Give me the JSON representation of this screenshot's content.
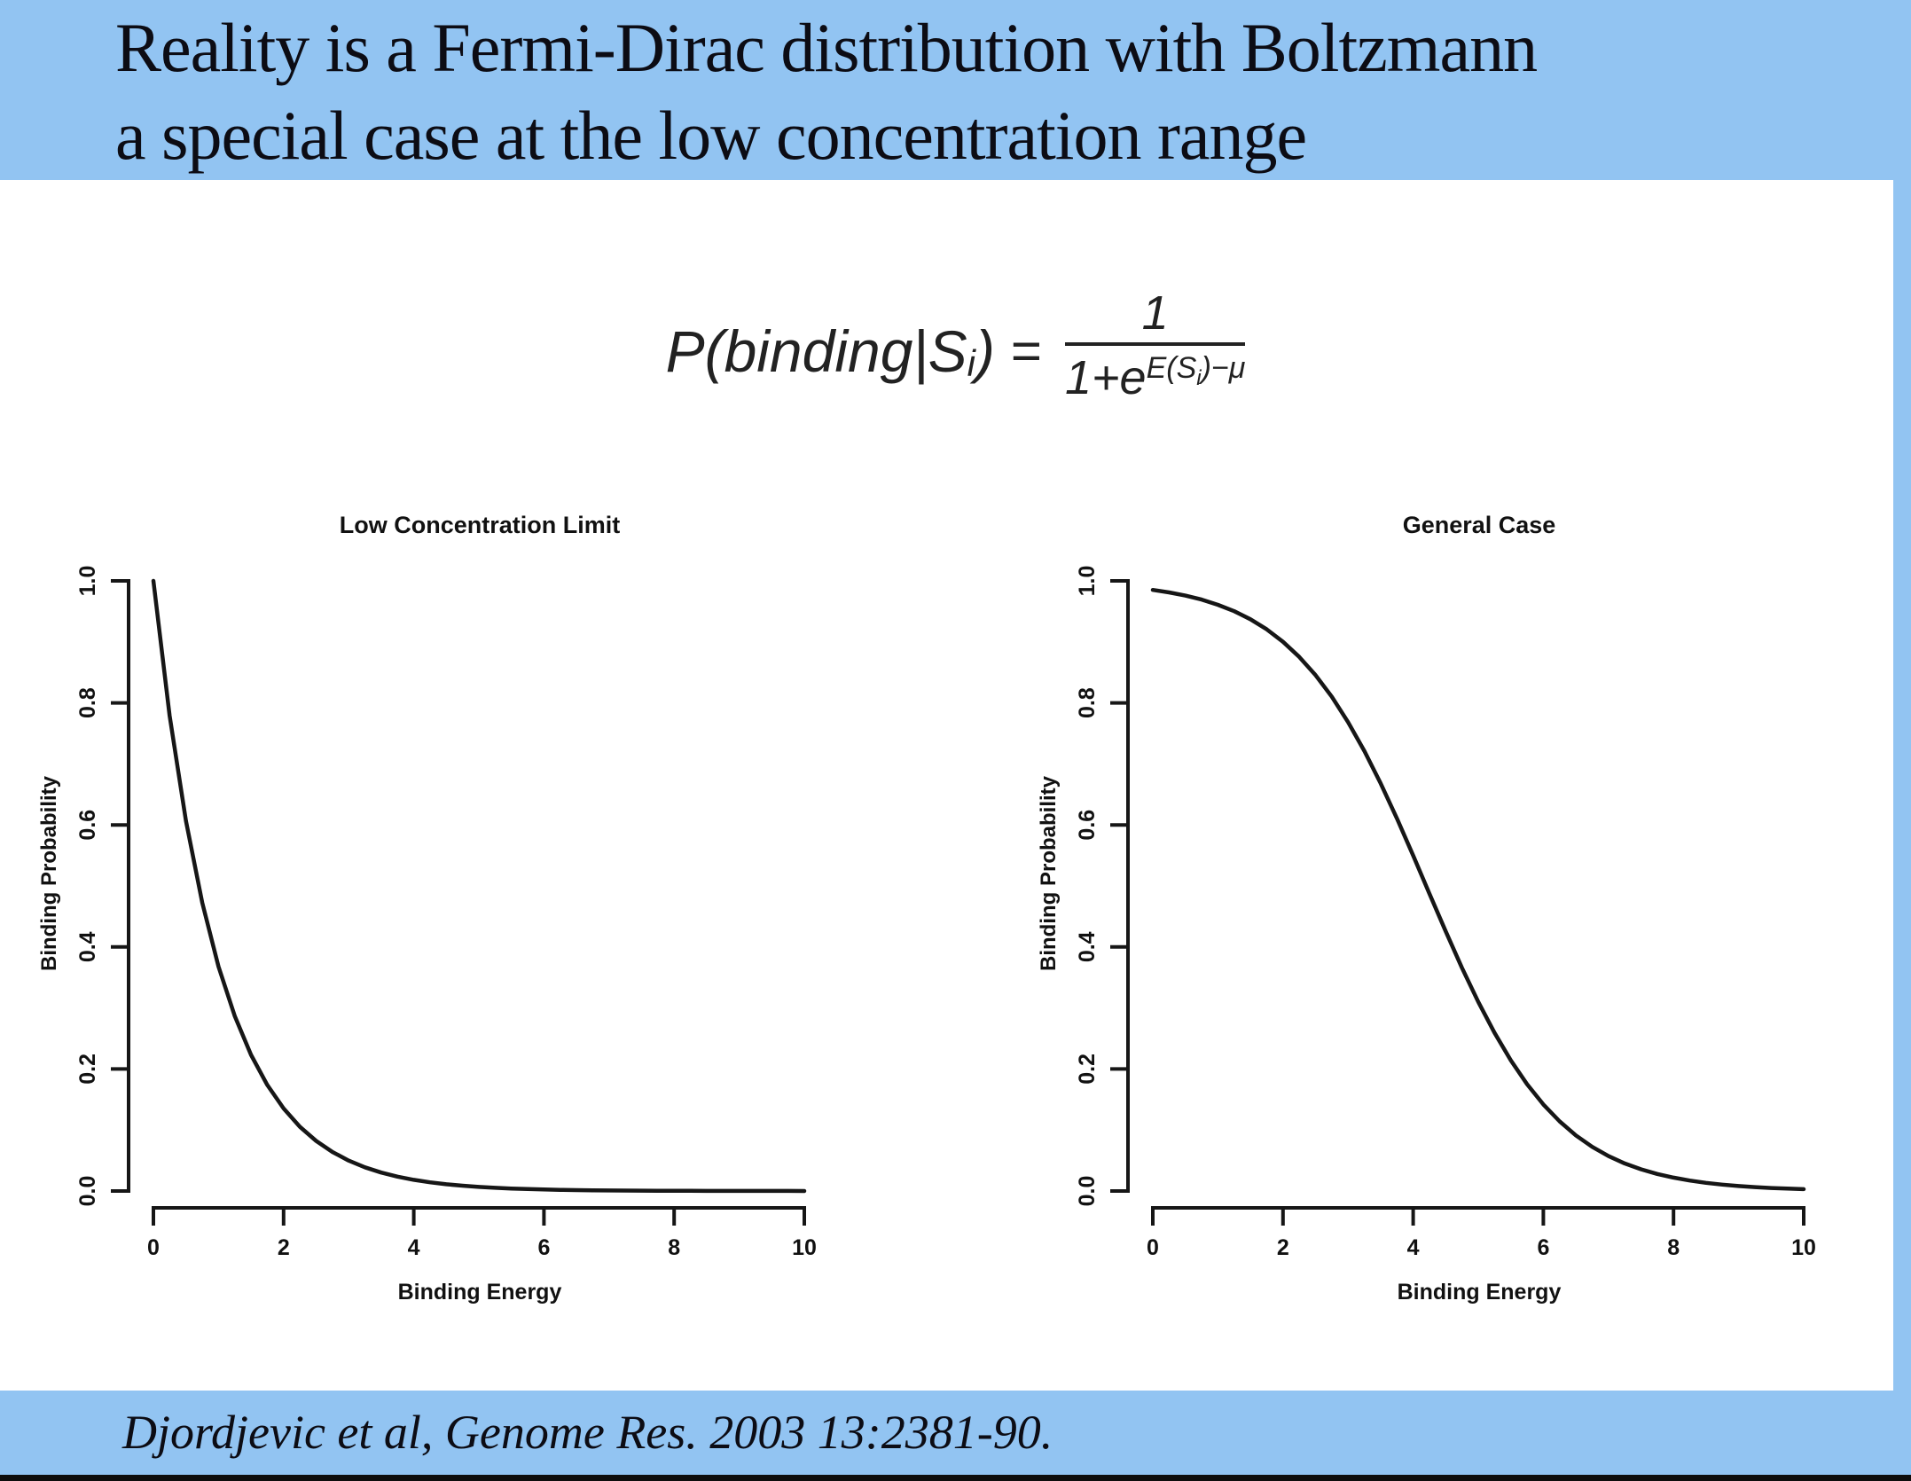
{
  "colors": {
    "slide_blue": "#92c4f2",
    "text_dark": "#0c0c14",
    "curve": "#161616"
  },
  "header": {
    "title_line1": "Reality is a Fermi-Dirac distribution with Boltzmann",
    "title_line2": "a special case at the low concentration range"
  },
  "formula": {
    "lhs_main": "P(binding|S",
    "lhs_sub": "i",
    "lhs_close": ")",
    "equals": "=",
    "numerator": "1",
    "den_base": "1+e",
    "exp_main": "E(S",
    "exp_sub": "i",
    "exp_close": ")−μ"
  },
  "footer": {
    "citation": "Djordjevic et al, Genome Res. 2003 13:2381-90."
  },
  "chart_data": [
    {
      "type": "line",
      "title": "Low Concentration Limit",
      "xlabel": "Binding Energy",
      "ylabel": "Binding Probability",
      "xlim": [
        0,
        10
      ],
      "ylim": [
        0,
        1
      ],
      "xticks": [
        0,
        2,
        4,
        6,
        8,
        10
      ],
      "ytick_labels": [
        "0.0",
        "0.2",
        "0.4",
        "0.6",
        "0.8",
        "1.0"
      ],
      "grid": false,
      "legend": null,
      "x": [
        0,
        0.25,
        0.5,
        0.75,
        1,
        1.25,
        1.5,
        1.75,
        2,
        2.25,
        2.5,
        2.75,
        3,
        3.25,
        3.5,
        3.75,
        4,
        4.25,
        4.5,
        4.75,
        5,
        5.25,
        5.5,
        5.75,
        6,
        6.25,
        6.5,
        6.75,
        7,
        7.25,
        7.5,
        7.75,
        8,
        8.25,
        8.5,
        8.75,
        9,
        9.25,
        9.5,
        9.75,
        10
      ],
      "y": [
        1,
        0.7788,
        0.6065,
        0.4724,
        0.3679,
        0.2865,
        0.2231,
        0.1738,
        0.1353,
        0.1054,
        0.0821,
        0.0639,
        0.0498,
        0.0388,
        0.0302,
        0.0235,
        0.0183,
        0.0143,
        0.0111,
        0.0087,
        0.0067,
        0.0052,
        0.0041,
        0.0032,
        0.0025,
        0.0019,
        0.0015,
        0.0012,
        0.0009,
        0.0007,
        0.0006,
        0.0004,
        0.0003,
        0.0003,
        0.0002,
        0.0002,
        0.0001,
        0.0001,
        0.0001,
        0.0001,
        0
      ]
    },
    {
      "type": "line",
      "title": "General Case",
      "xlabel": "Binding Energy",
      "ylabel": "Binding Probability",
      "xlim": [
        0,
        10
      ],
      "ylim": [
        0,
        1
      ],
      "xticks": [
        0,
        2,
        4,
        6,
        8,
        10
      ],
      "ytick_labels": [
        "0.0",
        "0.2",
        "0.4",
        "0.6",
        "0.8",
        "1.0"
      ],
      "grid": false,
      "legend": null,
      "x": [
        0,
        0.25,
        0.5,
        0.75,
        1,
        1.25,
        1.5,
        1.75,
        2,
        2.25,
        2.5,
        2.75,
        3,
        3.25,
        3.5,
        3.75,
        4,
        4.25,
        4.5,
        4.75,
        5,
        5.25,
        5.5,
        5.75,
        6,
        6.25,
        6.5,
        6.75,
        7,
        7.25,
        7.5,
        7.75,
        8,
        8.25,
        8.5,
        8.75,
        9,
        9.25,
        9.5,
        9.75,
        10
      ],
      "y": [
        0.9852,
        0.9811,
        0.9759,
        0.9693,
        0.9608,
        0.9503,
        0.937,
        0.9206,
        0.9002,
        0.8754,
        0.8455,
        0.81,
        0.7685,
        0.7211,
        0.6682,
        0.6106,
        0.5498,
        0.4875,
        0.4256,
        0.3659,
        0.31,
        0.2592,
        0.2142,
        0.1751,
        0.1419,
        0.1141,
        0.0911,
        0.0724,
        0.0573,
        0.0452,
        0.0356,
        0.0279,
        0.0219,
        0.0171,
        0.0134,
        0.0105,
        0.0082,
        0.0064,
        0.005,
        0.0039,
        0.003
      ]
    }
  ]
}
